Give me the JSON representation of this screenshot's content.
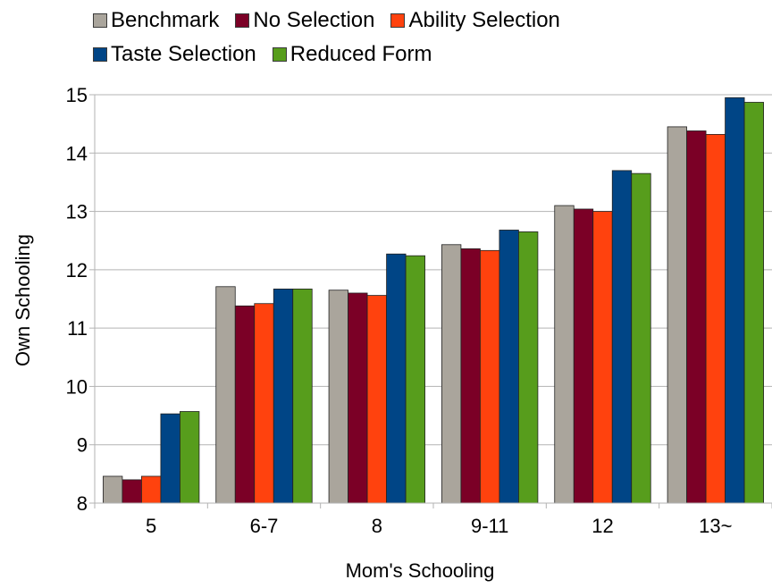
{
  "chart_data": {
    "type": "bar",
    "title": "",
    "xlabel": "Mom's Schooling",
    "ylabel": "Own Schooling",
    "ylim": [
      8,
      15
    ],
    "yticks": [
      8,
      9,
      10,
      11,
      12,
      13,
      14,
      15
    ],
    "grid": true,
    "legend_position": "top",
    "categories": [
      "5",
      "6-7",
      "8",
      "9-11",
      "12",
      "13~"
    ],
    "series": [
      {
        "name": "Benchmark",
        "color": "#aaa59c",
        "values": [
          8.46,
          11.71,
          11.65,
          12.43,
          13.1,
          14.45
        ]
      },
      {
        "name": "No Selection",
        "color": "#7b0026",
        "values": [
          8.4,
          11.38,
          11.6,
          12.36,
          13.04,
          14.38
        ]
      },
      {
        "name": "Ability Selection",
        "color": "#ff420e",
        "values": [
          8.46,
          11.42,
          11.56,
          12.33,
          13.0,
          14.32
        ]
      },
      {
        "name": "Taste Selection",
        "color": "#004586",
        "values": [
          9.53,
          11.67,
          12.27,
          12.68,
          13.7,
          14.95
        ]
      },
      {
        "name": "Reduced Form",
        "color": "#579d1c",
        "values": [
          9.57,
          11.67,
          12.24,
          12.65,
          13.65,
          14.87
        ]
      }
    ]
  }
}
